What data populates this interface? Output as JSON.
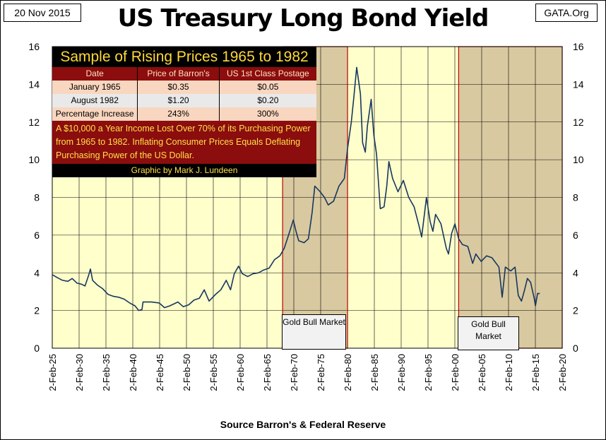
{
  "header": {
    "date": "20 Nov 2015",
    "title": "US Treasury Long Bond Yield",
    "site": "GATA.Org",
    "source": "Source Barron's & Federal Reserve"
  },
  "table": {
    "title": "Sample of Rising Prices 1965 to 1982",
    "columns": [
      "Date",
      "Price of Barron's",
      "US 1st Class Postage"
    ],
    "rows": [
      [
        "January 1965",
        "$0.35",
        "$0.05"
      ],
      [
        "August 1982",
        "$1.20",
        "$0.20"
      ],
      [
        "Percentage Increase",
        "243%",
        "300%"
      ]
    ],
    "note": "A $10,000 a Year Income Lost Over 70% of its Purchasing Power from 1965 to 1982.  Inflating Consumer Prices Equals Deflating Purchasing Power of the US Dollar.",
    "credit": "Graphic by Mark J. Lundeen"
  },
  "annotations": {
    "gold_bull_1": "Gold Bull Market",
    "gold_bull_2": "Gold Bull Market"
  },
  "colors": {
    "plot_bg": "#ffffcc",
    "shade": "#d9c9a0",
    "line": "#17375e",
    "border_red": "#c00000"
  },
  "chart_data": {
    "type": "line",
    "title": "US Treasury Long Bond Yield",
    "xlabel": "",
    "ylabel": "",
    "x_tick_labels": [
      "2-Feb-25",
      "2-Feb-30",
      "2-Feb-35",
      "2-Feb-40",
      "2-Feb-45",
      "2-Feb-50",
      "2-Feb-55",
      "2-Feb-60",
      "2-Feb-65",
      "2-Feb-70",
      "2-Feb-75",
      "2-Feb-80",
      "2-Feb-85",
      "2-Feb-90",
      "2-Feb-95",
      "2-Feb-00",
      "2-Feb-05",
      "2-Feb-10",
      "2-Feb-15",
      "2-Feb-20"
    ],
    "y_ticks": [
      0,
      2,
      4,
      6,
      8,
      10,
      12,
      14,
      16
    ],
    "xlim": [
      1925.09,
      2020.09
    ],
    "ylim": [
      0,
      16
    ],
    "shaded_periods": [
      [
        1968.0,
        1980.1
      ],
      [
        2000.8,
        2020.09
      ]
    ],
    "series": [
      {
        "values": [
          [
            1925.1,
            3.9
          ],
          [
            1926.0,
            3.75
          ],
          [
            1927.0,
            3.6
          ],
          [
            1928.0,
            3.55
          ],
          [
            1928.8,
            3.7
          ],
          [
            1929.7,
            3.45
          ],
          [
            1930.5,
            3.4
          ],
          [
            1931.2,
            3.3
          ],
          [
            1931.9,
            3.9
          ],
          [
            1932.2,
            4.2
          ],
          [
            1932.6,
            3.6
          ],
          [
            1933.5,
            3.35
          ],
          [
            1934.5,
            3.15
          ],
          [
            1935.5,
            2.85
          ],
          [
            1936.5,
            2.75
          ],
          [
            1937.5,
            2.7
          ],
          [
            1938.5,
            2.6
          ],
          [
            1939.5,
            2.4
          ],
          [
            1940.5,
            2.25
          ],
          [
            1941.2,
            2.0
          ],
          [
            1941.8,
            2.05
          ],
          [
            1942.0,
            2.45
          ],
          [
            1943.5,
            2.45
          ],
          [
            1945.0,
            2.4
          ],
          [
            1946.0,
            2.15
          ],
          [
            1947.0,
            2.25
          ],
          [
            1948.5,
            2.45
          ],
          [
            1949.5,
            2.2
          ],
          [
            1950.5,
            2.3
          ],
          [
            1951.5,
            2.55
          ],
          [
            1952.5,
            2.65
          ],
          [
            1953.4,
            3.1
          ],
          [
            1954.3,
            2.5
          ],
          [
            1955.5,
            2.85
          ],
          [
            1956.5,
            3.1
          ],
          [
            1957.5,
            3.6
          ],
          [
            1958.3,
            3.1
          ],
          [
            1959.0,
            3.95
          ],
          [
            1959.8,
            4.35
          ],
          [
            1960.5,
            3.95
          ],
          [
            1961.5,
            3.8
          ],
          [
            1962.5,
            3.95
          ],
          [
            1963.5,
            4.0
          ],
          [
            1964.5,
            4.15
          ],
          [
            1965.5,
            4.25
          ],
          [
            1966.5,
            4.7
          ],
          [
            1967.5,
            4.9
          ],
          [
            1968.3,
            5.3
          ],
          [
            1969.0,
            5.9
          ],
          [
            1970.0,
            6.8
          ],
          [
            1970.5,
            6.2
          ],
          [
            1971.0,
            5.7
          ],
          [
            1972.0,
            5.6
          ],
          [
            1972.8,
            5.8
          ],
          [
            1973.5,
            7.2
          ],
          [
            1974.0,
            8.6
          ],
          [
            1975.0,
            8.3
          ],
          [
            1975.8,
            8.0
          ],
          [
            1976.5,
            7.6
          ],
          [
            1977.5,
            7.8
          ],
          [
            1978.5,
            8.6
          ],
          [
            1979.5,
            9.0
          ],
          [
            1980.1,
            10.6
          ],
          [
            1980.8,
            12.0
          ],
          [
            1981.3,
            13.4
          ],
          [
            1981.8,
            14.9
          ],
          [
            1982.5,
            13.5
          ],
          [
            1982.9,
            10.9
          ],
          [
            1983.4,
            10.4
          ],
          [
            1983.8,
            11.8
          ],
          [
            1984.5,
            13.2
          ],
          [
            1985.0,
            11.3
          ],
          [
            1985.5,
            10.3
          ],
          [
            1986.2,
            7.4
          ],
          [
            1986.9,
            7.5
          ],
          [
            1987.4,
            8.6
          ],
          [
            1987.8,
            9.9
          ],
          [
            1988.5,
            9.0
          ],
          [
            1989.5,
            8.3
          ],
          [
            1990.5,
            8.9
          ],
          [
            1991.5,
            8.0
          ],
          [
            1992.5,
            7.5
          ],
          [
            1993.4,
            6.5
          ],
          [
            1993.9,
            5.9
          ],
          [
            1994.8,
            8.0
          ],
          [
            1995.5,
            6.7
          ],
          [
            1996.0,
            6.2
          ],
          [
            1996.5,
            7.1
          ],
          [
            1997.5,
            6.6
          ],
          [
            1998.5,
            5.3
          ],
          [
            1998.9,
            5.0
          ],
          [
            1999.5,
            6.1
          ],
          [
            2000.1,
            6.6
          ],
          [
            2000.8,
            5.8
          ],
          [
            2001.5,
            5.5
          ],
          [
            2002.5,
            5.4
          ],
          [
            2003.4,
            4.5
          ],
          [
            2004.0,
            5.0
          ],
          [
            2005.0,
            4.6
          ],
          [
            2006.0,
            4.9
          ],
          [
            2007.0,
            4.8
          ],
          [
            2008.3,
            4.3
          ],
          [
            2008.9,
            2.7
          ],
          [
            2009.5,
            4.3
          ],
          [
            2010.5,
            4.1
          ],
          [
            2011.3,
            4.3
          ],
          [
            2011.9,
            2.8
          ],
          [
            2012.5,
            2.5
          ],
          [
            2013.0,
            3.0
          ],
          [
            2013.6,
            3.7
          ],
          [
            2014.2,
            3.5
          ],
          [
            2014.9,
            2.6
          ],
          [
            2015.1,
            2.25
          ],
          [
            2015.5,
            2.9
          ],
          [
            2015.9,
            2.9
          ]
        ]
      }
    ]
  }
}
